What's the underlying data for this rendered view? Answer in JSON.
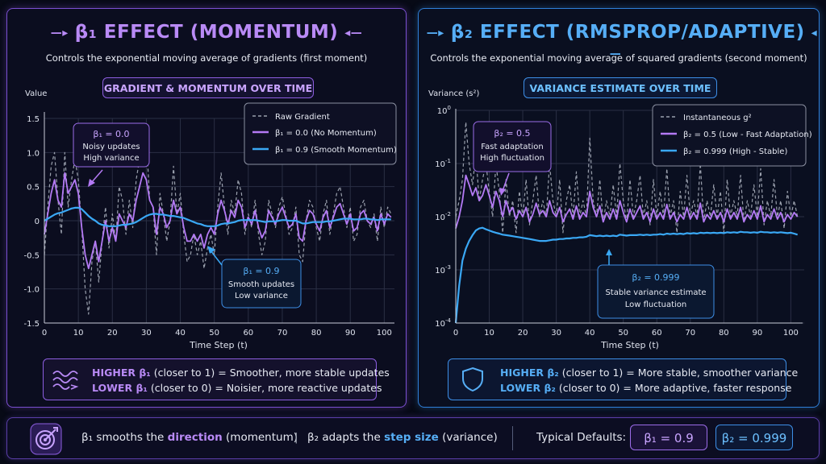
{
  "left_panel": {
    "title": "β₁ EFFECT (MOMENTUM)",
    "subtitle": "Controls the exponential moving average of gradients (first moment)",
    "chart_pill": "GRADIENT & MOMENTUM OVER TIME",
    "y_axis_label": "Value",
    "x_axis_label": "Time Step (t)",
    "legend": [
      "Raw Gradient",
      "β₁ = 0.0 (No Momentum)",
      "β₁ = 0.9 (Smooth Momentum)"
    ],
    "annotation_low": {
      "title": "β₁ = 0.0",
      "line1": "Noisy updates",
      "line2": "High variance"
    },
    "annotation_high": {
      "title": "β₁ = 0.9",
      "line1": "Smooth updates",
      "line2": "Low variance"
    },
    "summary_higher_label": "HIGHER β₁",
    "summary_higher_text": "(closer to 1) = Smoother, more stable updates",
    "summary_lower_label": "LOWER β₁",
    "summary_lower_text": "(closer to 0) = Noisier, more reactive updates"
  },
  "right_panel": {
    "title": "β₂ EFFECT (RMSPROP/ADAPTIVE)",
    "subtitle": "Controls the exponential moving average of squared gradients (second moment)",
    "chart_pill": "VARIANCE ESTIMATE OVER TIME",
    "y_axis_label": "Variance (s²)",
    "x_axis_label": "Time Step (t)",
    "legend": [
      "Instantaneous g²",
      "β₂ = 0.5 (Low - Fast Adaptation)",
      "β₂ = 0.999 (High - Stable)"
    ],
    "annotation_low": {
      "title": "β₂ = 0.5",
      "line1": "Fast adaptation",
      "line2": "High fluctuation"
    },
    "annotation_high": {
      "title": "β₂ = 0.999",
      "line1": "Stable variance estimate",
      "line2": "Low fluctuation"
    },
    "summary_higher_label": "HIGHER β₂",
    "summary_higher_text": "(closer to 1) = More stable, smoother variance",
    "summary_lower_label": "LOWER β₂",
    "summary_lower_text": "(closer to 0) = More adaptive, faster response"
  },
  "bottom_bar": {
    "part1_pre": "β₁ smooths the",
    "part1_hl": "direction",
    "part1_post": "(momentum)",
    "divider": "|",
    "part2_pre": "β₂ adapts the",
    "part2_hl": "step size",
    "part2_post": "(variance)",
    "defaults_label": "Typical Defaults:",
    "default_b1": "β₁ = 0.9",
    "default_b2": "β₂ = 0.999"
  },
  "colors": {
    "purple": "#b47af5",
    "blue": "#3aa8f5",
    "gray": "#9aa0ad",
    "bg": "#070a16"
  },
  "chart_data": [
    {
      "type": "line",
      "x_ticks": [
        0,
        10,
        20,
        30,
        40,
        50,
        60,
        70,
        80,
        90,
        100
      ],
      "y_ticks": [
        "1.5",
        "1.0",
        "0.5",
        "0",
        "-0.5",
        "-1.0",
        "-1.5"
      ],
      "xlim": [
        0,
        103
      ],
      "ylim": [
        -1.5,
        1.5
      ],
      "grid": true,
      "legend_position": "top-right",
      "series": [
        {
          "name": "Raw Gradient",
          "style": "dashed",
          "color": "#9aa0ad",
          "values": [
            -0.5,
            0.2,
            0.8,
            1.0,
            0.3,
            -0.2,
            1.0,
            0.2,
            0.6,
            0.9,
            0.6,
            -0.1,
            -1.0,
            -1.37,
            -0.6,
            -0.3,
            -0.9,
            -0.3,
            0.2,
            -0.4,
            0.1,
            -0.3,
            0.5,
            0.3,
            -0.2,
            0.3,
            -0.1,
            0.6,
            0.9,
            1.3,
            1.2,
            0.3,
            0.2,
            -0.5,
            0.4,
            0.1,
            -0.3,
            0.0,
            0.8,
            0.1,
            0.4,
            -0.2,
            -0.6,
            -0.5,
            -0.2,
            -0.5,
            -0.3,
            -0.7,
            -0.4,
            -0.2,
            -0.5,
            0.2,
            0.7,
            0.2,
            -0.2,
            0.3,
            0.1,
            0.6,
            0.4,
            -0.2,
            0.1,
            -0.1,
            0.3,
            -0.2,
            -0.5,
            -0.3,
            0.3,
            0.1,
            -0.1,
            0.2,
            0.35,
            0.1,
            -0.2,
            -0.1,
            0.2,
            -0.5,
            -0.6,
            0.0,
            0.3,
            0.2,
            -0.1,
            -0.3,
            0.1,
            0.3,
            -0.2,
            0.1,
            0.4,
            0.5,
            0.2,
            -0.1,
            0.2,
            -0.3,
            -0.2,
            0.2,
            0.3,
            0.0,
            -0.1,
            0.1,
            -0.3,
            0.2,
            -0.1,
            0.2,
            0.1
          ]
        },
        {
          "name": "β₁ = 0.0 (No Momentum)",
          "style": "solid",
          "color": "#b47af5",
          "values": [
            -0.2,
            0.1,
            0.4,
            0.6,
            0.3,
            0.2,
            0.7,
            0.4,
            0.5,
            0.6,
            0.4,
            -0.1,
            -0.5,
            -0.7,
            -0.5,
            -0.3,
            -0.6,
            -0.3,
            0.0,
            -0.3,
            -0.1,
            -0.3,
            0.1,
            0.0,
            -0.1,
            0.1,
            0.0,
            0.3,
            0.5,
            0.7,
            0.6,
            0.3,
            0.2,
            -0.2,
            0.2,
            0.1,
            -0.1,
            0.0,
            0.3,
            0.1,
            0.2,
            -0.1,
            -0.3,
            -0.3,
            -0.2,
            -0.3,
            -0.2,
            -0.4,
            -0.2,
            -0.1,
            -0.2,
            0.1,
            0.3,
            0.15,
            -0.05,
            0.15,
            0.05,
            0.3,
            0.2,
            -0.1,
            0.05,
            -0.05,
            0.15,
            -0.1,
            -0.25,
            -0.15,
            0.15,
            0.05,
            -0.05,
            0.1,
            0.2,
            0.05,
            -0.1,
            -0.05,
            0.1,
            -0.25,
            -0.3,
            0.0,
            0.15,
            0.1,
            -0.05,
            -0.15,
            0.05,
            0.15,
            -0.1,
            0.05,
            0.2,
            0.25,
            0.1,
            -0.05,
            0.1,
            -0.15,
            -0.1,
            0.1,
            0.15,
            0.0,
            -0.05,
            0.05,
            -0.15,
            0.1,
            -0.05,
            0.1,
            0.05
          ]
        },
        {
          "name": "β₁ = 0.9 (Smooth Momentum)",
          "style": "solid",
          "color": "#3aa8f5",
          "values": [
            0.0,
            0.03,
            0.06,
            0.09,
            0.11,
            0.12,
            0.14,
            0.16,
            0.18,
            0.19,
            0.19,
            0.17,
            0.12,
            0.07,
            0.03,
            0.0,
            -0.04,
            -0.06,
            -0.07,
            -0.08,
            -0.08,
            -0.08,
            -0.07,
            -0.06,
            -0.06,
            -0.05,
            -0.04,
            -0.02,
            0.01,
            0.04,
            0.07,
            0.09,
            0.1,
            0.1,
            0.09,
            0.09,
            0.08,
            0.07,
            0.07,
            0.06,
            0.05,
            0.04,
            0.02,
            0.0,
            -0.02,
            -0.04,
            -0.05,
            -0.07,
            -0.08,
            -0.08,
            -0.08,
            -0.07,
            -0.05,
            -0.04,
            -0.04,
            -0.03,
            -0.02,
            0.0,
            0.01,
            0.01,
            0.01,
            0.01,
            0.01,
            0.0,
            -0.01,
            -0.02,
            -0.01,
            -0.01,
            -0.01,
            0.0,
            0.01,
            0.01,
            0.0,
            0.0,
            0.0,
            -0.02,
            -0.04,
            -0.04,
            -0.03,
            -0.02,
            -0.02,
            -0.02,
            -0.02,
            -0.01,
            -0.01,
            0.0,
            0.01,
            0.02,
            0.03,
            0.03,
            0.03,
            0.02,
            0.02,
            0.02,
            0.03,
            0.03,
            0.02,
            0.02,
            0.01,
            0.02,
            0.02,
            0.02,
            0.02
          ]
        }
      ]
    },
    {
      "type": "line",
      "y_scale": "log",
      "x_ticks": [
        0,
        10,
        20,
        30,
        40,
        50,
        60,
        70,
        80,
        90,
        100
      ],
      "y_ticks": [
        1,
        0.1,
        0.01,
        0.001,
        0.0001
      ],
      "xlim": [
        0,
        104
      ],
      "ylim": [
        0.0001,
        1
      ],
      "grid": true,
      "legend_position": "top-right",
      "series": [
        {
          "name": "Instantaneous g²",
          "style": "dashed",
          "color": "#9aa0ad",
          "values": [
            0.01,
            0.02,
            0.05,
            0.6,
            0.1,
            0.04,
            0.15,
            0.02,
            0.05,
            0.1,
            0.03,
            0.01,
            0.1,
            0.03,
            0.005,
            0.05,
            0.01,
            0.02,
            0.005,
            0.03,
            0.01,
            0.05,
            0.007,
            0.02,
            0.06,
            0.01,
            0.02,
            0.01,
            0.1,
            0.02,
            0.01,
            0.05,
            0.005,
            0.02,
            0.04,
            0.01,
            0.07,
            0.01,
            0.02,
            0.01,
            0.3,
            0.02,
            0.01,
            0.05,
            0.008,
            0.02,
            0.01,
            0.04,
            0.01,
            0.1,
            0.02,
            0.008,
            0.05,
            0.01,
            0.02,
            0.06,
            0.01,
            0.02,
            0.007,
            0.05,
            0.01,
            0.03,
            0.01,
            0.08,
            0.01,
            0.02,
            0.005,
            0.03,
            0.01,
            0.06,
            0.01,
            0.02,
            0.01,
            0.1,
            0.008,
            0.02,
            0.01,
            0.04,
            0.01,
            0.03,
            0.005,
            0.05,
            0.01,
            0.02,
            0.01,
            0.06,
            0.008,
            0.02,
            0.01,
            0.04,
            0.01,
            0.08,
            0.007,
            0.02,
            0.01,
            0.05,
            0.01,
            0.02,
            0.006,
            0.03,
            0.01,
            0.02,
            0.01
          ]
        },
        {
          "name": "β₂ = 0.5 (Low - Fast Adaptation)",
          "style": "solid",
          "color": "#b47af5",
          "values": [
            0.006,
            0.01,
            0.02,
            0.06,
            0.04,
            0.025,
            0.035,
            0.02,
            0.025,
            0.04,
            0.025,
            0.015,
            0.03,
            0.02,
            0.01,
            0.02,
            0.012,
            0.015,
            0.009,
            0.013,
            0.01,
            0.015,
            0.008,
            0.011,
            0.018,
            0.011,
            0.013,
            0.01,
            0.02,
            0.012,
            0.01,
            0.015,
            0.008,
            0.011,
            0.014,
            0.009,
            0.016,
            0.009,
            0.012,
            0.01,
            0.03,
            0.015,
            0.01,
            0.016,
            0.008,
            0.012,
            0.009,
            0.014,
            0.009,
            0.02,
            0.012,
            0.008,
            0.014,
            0.009,
            0.012,
            0.016,
            0.009,
            0.012,
            0.008,
            0.014,
            0.009,
            0.012,
            0.009,
            0.017,
            0.009,
            0.012,
            0.008,
            0.011,
            0.009,
            0.015,
            0.009,
            0.012,
            0.009,
            0.018,
            0.008,
            0.011,
            0.009,
            0.013,
            0.009,
            0.012,
            0.008,
            0.014,
            0.009,
            0.012,
            0.009,
            0.015,
            0.008,
            0.011,
            0.009,
            0.013,
            0.009,
            0.016,
            0.008,
            0.011,
            0.009,
            0.014,
            0.009,
            0.012,
            0.008,
            0.011,
            0.009,
            0.012,
            0.01
          ]
        },
        {
          "name": "β₂ = 0.999 (High - Stable)",
          "style": "solid",
          "color": "#3aa8f5",
          "values": [
            0.0001,
            0.0005,
            0.0015,
            0.0025,
            0.0035,
            0.0045,
            0.0055,
            0.006,
            0.0062,
            0.0058,
            0.0055,
            0.0052,
            0.005,
            0.0048,
            0.0046,
            0.0045,
            0.0044,
            0.0043,
            0.0042,
            0.0041,
            0.004,
            0.0039,
            0.0038,
            0.0037,
            0.0036,
            0.0035,
            0.0035,
            0.0035,
            0.0036,
            0.0037,
            0.0037,
            0.0038,
            0.0038,
            0.0039,
            0.0039,
            0.004,
            0.004,
            0.0041,
            0.0041,
            0.0042,
            0.0045,
            0.0044,
            0.0043,
            0.0044,
            0.0043,
            0.0044,
            0.0043,
            0.0044,
            0.0043,
            0.0046,
            0.0045,
            0.0044,
            0.0045,
            0.0045,
            0.0045,
            0.0046,
            0.0045,
            0.0046,
            0.0045,
            0.0046,
            0.0046,
            0.0047,
            0.0046,
            0.0048,
            0.0047,
            0.0048,
            0.0047,
            0.0048,
            0.0047,
            0.0049,
            0.0048,
            0.0049,
            0.0048,
            0.005,
            0.0049,
            0.005,
            0.0049,
            0.005,
            0.0049,
            0.005,
            0.0049,
            0.0051,
            0.005,
            0.0051,
            0.005,
            0.0052,
            0.0051,
            0.0051,
            0.005,
            0.0051,
            0.005,
            0.0052,
            0.0051,
            0.0051,
            0.005,
            0.0051,
            0.005,
            0.0051,
            0.005,
            0.0049,
            0.005,
            0.0048,
            0.0046
          ]
        }
      ]
    }
  ]
}
